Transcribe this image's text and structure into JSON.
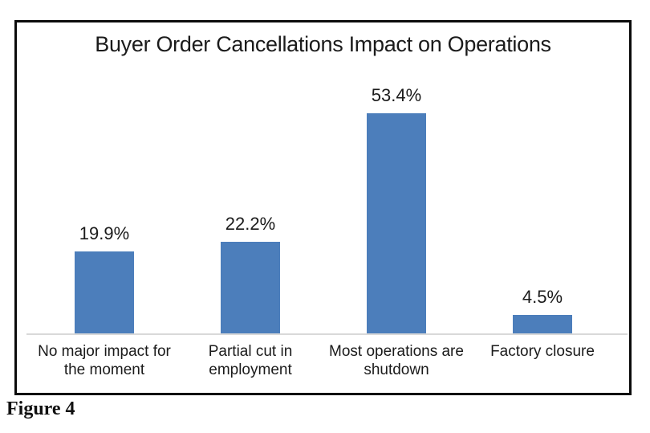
{
  "figure": {
    "caption": "Figure 4"
  },
  "chart_data": {
    "type": "bar",
    "title": "Buyer Order Cancellations Impact on Operations",
    "categories": [
      "No major impact for the moment",
      "Partial cut in employment",
      "Most operations are shutdown",
      "Factory closure"
    ],
    "values": [
      19.9,
      22.2,
      53.4,
      4.5
    ],
    "value_labels": [
      "19.9%",
      "22.2%",
      "53.4%",
      "4.5%"
    ],
    "unit": "%",
    "xlabel": "",
    "ylabel": "",
    "ylim": [
      0,
      60
    ],
    "grid": false,
    "legend": false,
    "bar_color": "#4C7EBB",
    "axis_line_color": "#D9D9D9",
    "frame_border_color": "#0b0b0b",
    "text_color": "#1b1b1b"
  }
}
